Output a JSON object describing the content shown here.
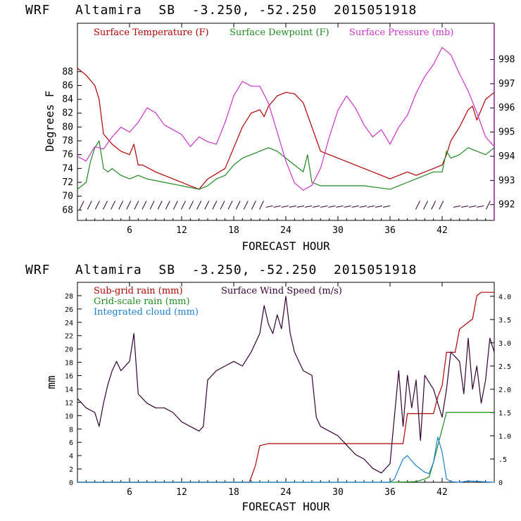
{
  "chart_data": [
    {
      "type": "line",
      "header": "WRF   Altamira  SB  -3.250, -52.250  2015051918",
      "xlabel": "FORECAST HOUR",
      "ylabel": "Degrees F",
      "xlim": [
        0,
        48
      ],
      "x_ticks": [
        "6",
        "12",
        "18",
        "24",
        "30",
        "36",
        "42"
      ],
      "ylim": [
        66.5,
        95
      ],
      "y_ticks": [
        "68",
        "70",
        "72",
        "74",
        "76",
        "78",
        "80",
        "82",
        "84",
        "86",
        "88"
      ],
      "y2lim": [
        991.35,
        999.5
      ],
      "y2_ticks": [
        "992",
        "993",
        "994",
        "995",
        "996",
        "997",
        "998"
      ],
      "legend": [
        {
          "name": "Surface Temperature (F)",
          "color": "#b00000"
        },
        {
          "name": "Surface Dewpoint (F)",
          "color": "#208a20"
        },
        {
          "name": "Surface Pressure (mb)",
          "color": "#cc33cc"
        }
      ],
      "series": [
        {
          "name": "Surface Temperature (F)",
          "color": "#b00000",
          "axis": "left",
          "x": [
            0,
            1,
            2,
            2.5,
            3,
            4,
            5,
            6,
            6.5,
            7,
            7.5,
            9,
            11,
            13,
            14,
            15,
            17,
            18,
            19,
            20,
            21,
            21.5,
            22,
            23,
            24,
            25,
            26,
            27,
            28,
            30,
            33,
            35,
            36,
            37,
            38,
            39,
            40,
            41,
            42,
            42.5,
            43,
            44,
            45,
            45.5,
            46,
            47,
            48
          ],
          "y": [
            88.5,
            87.5,
            86,
            84,
            79,
            77.5,
            76.5,
            76,
            77.5,
            74.5,
            74.5,
            73.5,
            72.5,
            71.5,
            71,
            72.5,
            74,
            77,
            80,
            82,
            82.5,
            81.5,
            83,
            84.5,
            85,
            84.8,
            83.5,
            80,
            76.5,
            75.5,
            74,
            73,
            72.5,
            73,
            73.5,
            73,
            73.5,
            74,
            74.5,
            76,
            78,
            80,
            82.5,
            83,
            81,
            84,
            85
          ]
        },
        {
          "name": "Surface Dewpoint (F)",
          "color": "#208a20",
          "axis": "left",
          "x": [
            0,
            1,
            1.5,
            2,
            2.5,
            3,
            3.5,
            4,
            5,
            6,
            7,
            8,
            10,
            12,
            14,
            15,
            16,
            17,
            18,
            19,
            20,
            21,
            22,
            23,
            24,
            25,
            26,
            26.5,
            27,
            28,
            30,
            33,
            36,
            37,
            38,
            39,
            40,
            41,
            42,
            42.5,
            43,
            44,
            45,
            46,
            47,
            48
          ],
          "y": [
            71,
            72,
            75,
            77,
            78,
            74,
            73.5,
            74,
            73,
            72.5,
            73,
            72.5,
            72,
            71.5,
            71,
            71.5,
            72.5,
            73,
            74.5,
            75.5,
            76,
            76.5,
            77,
            76.5,
            75.5,
            74.5,
            73.5,
            76,
            72,
            71.5,
            71.5,
            71.5,
            71,
            71.5,
            72,
            72.5,
            73,
            73.5,
            73.5,
            76.5,
            75.5,
            76,
            77,
            76.5,
            76,
            77
          ]
        },
        {
          "name": "Surface Pressure (mb)",
          "color": "#cc33cc",
          "axis": "right",
          "x": [
            0,
            1,
            2,
            3,
            4,
            5,
            6,
            7,
            8,
            9,
            10,
            11,
            12,
            13,
            14,
            15,
            16,
            17,
            18,
            19,
            20,
            21,
            22,
            23,
            24,
            25,
            26,
            27,
            28,
            29,
            30,
            31,
            32,
            33,
            34,
            35,
            36,
            37,
            38,
            39,
            40,
            41,
            42,
            43,
            44,
            45,
            46,
            47,
            48
          ],
          "y": [
            994,
            993.8,
            994.4,
            994.3,
            994.8,
            995.2,
            995.0,
            995.4,
            996.0,
            995.8,
            995.3,
            995.1,
            994.9,
            994.4,
            994.8,
            994.6,
            994.5,
            995.4,
            996.5,
            997.1,
            996.9,
            996.9,
            996.2,
            995.0,
            993.8,
            992.9,
            992.6,
            992.8,
            993.5,
            994.8,
            995.9,
            996.5,
            996.0,
            995.3,
            994.8,
            995.1,
            994.5,
            995.2,
            995.7,
            996.6,
            997.3,
            997.8,
            998.5,
            998.2,
            997.4,
            996.7,
            995.8,
            994.8,
            994.4
          ]
        }
      ]
    },
    {
      "type": "line",
      "header": "WRF   Altamira  SB  -3.250, -52.250  2015051918",
      "xlabel": "FORECAST HOUR",
      "ylabel": "mm",
      "xlim": [
        0,
        48
      ],
      "x_ticks": [
        "6",
        "12",
        "18",
        "24",
        "30",
        "36",
        "42"
      ],
      "ylim": [
        0,
        30
      ],
      "y_ticks": [
        "0",
        "2",
        "4",
        "6",
        "8",
        "10",
        "12",
        "14",
        "16",
        "18",
        "20",
        "22",
        "24",
        "26",
        "28"
      ],
      "y2lim": [
        0,
        4.3
      ],
      "y2_ticks": [
        "0",
        ".5",
        "1.0",
        "1.5",
        "2.0",
        "2.5",
        "3.0",
        "3.5",
        "4.0"
      ],
      "legend": [
        {
          "name": "Sub-grid rain (mm)",
          "color": "#b00000"
        },
        {
          "name": "Surface Wind Speed (m/s)",
          "color": "#330033"
        },
        {
          "name": "Grid-scale rain (mm)",
          "color": "#208a20"
        },
        {
          "name": "Integrated cloud (mm)",
          "color": "#1a7fd0"
        }
      ],
      "series": [
        {
          "name": "Sub-grid rain (mm)",
          "color": "#b00000",
          "axis": "left",
          "x": [
            0,
            19.8,
            20.5,
            21,
            22,
            23,
            37.5,
            38,
            41,
            41.5,
            42,
            42.5,
            43.5,
            44,
            45.5,
            46,
            46.5,
            48
          ],
          "y": [
            0,
            0,
            2.5,
            5.5,
            5.8,
            5.8,
            5.8,
            10.3,
            10.3,
            12.8,
            14.5,
            19.5,
            19.5,
            23,
            24.5,
            28,
            28.5,
            28.5
          ]
        },
        {
          "name": "Grid-scale rain (mm)",
          "color": "#208a20",
          "axis": "left",
          "x": [
            0,
            36,
            39,
            40,
            40.5,
            41,
            41.5,
            42,
            42.5,
            48
          ],
          "y": [
            0,
            0,
            0.1,
            0.5,
            0.8,
            3.0,
            5.5,
            8.0,
            10.5,
            10.5
          ]
        },
        {
          "name": "Integrated cloud (mm)",
          "color": "#1a7fd0",
          "axis": "left",
          "x": [
            0,
            36,
            36.5,
            37,
            37.5,
            38,
            38.5,
            39,
            39.5,
            40,
            40.5,
            41,
            41.5,
            42,
            42.5,
            43,
            44,
            45,
            48
          ],
          "y": [
            0,
            0,
            0.5,
            2.0,
            3.5,
            4.0,
            3.2,
            2.5,
            2.0,
            1.5,
            1.3,
            3.0,
            6.8,
            4.5,
            0.5,
            0.1,
            0,
            0.2,
            0
          ]
        },
        {
          "name": "Surface Wind Speed (m/s)",
          "color": "#330033",
          "axis": "right",
          "x": [
            0,
            1,
            2,
            2.5,
            3,
            3.5,
            4,
            4.5,
            5,
            6,
            6.5,
            7,
            7.5,
            8,
            9,
            10,
            11,
            12,
            13,
            14,
            14.5,
            15,
            16,
            17,
            18,
            19,
            20,
            21,
            21.5,
            22,
            22.5,
            23,
            23.5,
            24,
            24.5,
            25,
            26,
            27,
            27.5,
            28,
            29,
            30,
            31,
            32,
            33,
            34,
            35,
            36,
            37,
            37.5,
            38,
            38.5,
            39,
            39.5,
            40,
            41,
            42,
            42.5,
            43,
            44,
            44.5,
            45,
            45.5,
            46,
            46.5,
            47,
            47.5,
            48
          ],
          "y": [
            1.8,
            1.6,
            1.5,
            1.2,
            1.7,
            2.1,
            2.4,
            2.6,
            2.4,
            2.6,
            3.2,
            1.9,
            1.8,
            1.7,
            1.6,
            1.6,
            1.5,
            1.3,
            1.2,
            1.1,
            1.2,
            2.2,
            2.4,
            2.5,
            2.6,
            2.5,
            2.8,
            3.2,
            3.8,
            3.4,
            3.2,
            3.6,
            3.3,
            4.0,
            3.2,
            2.8,
            2.4,
            2.3,
            1.4,
            1.2,
            1.1,
            1.0,
            0.8,
            0.6,
            0.5,
            0.3,
            0.2,
            0.4,
            2.4,
            1.2,
            2.3,
            1.6,
            2.2,
            0.9,
            2.3,
            2.0,
            1.4,
            2.0,
            2.8,
            2.6,
            1.9,
            3.1,
            2.0,
            2.5,
            1.7,
            2.2,
            3.1,
            2.8
          ]
        }
      ]
    }
  ]
}
